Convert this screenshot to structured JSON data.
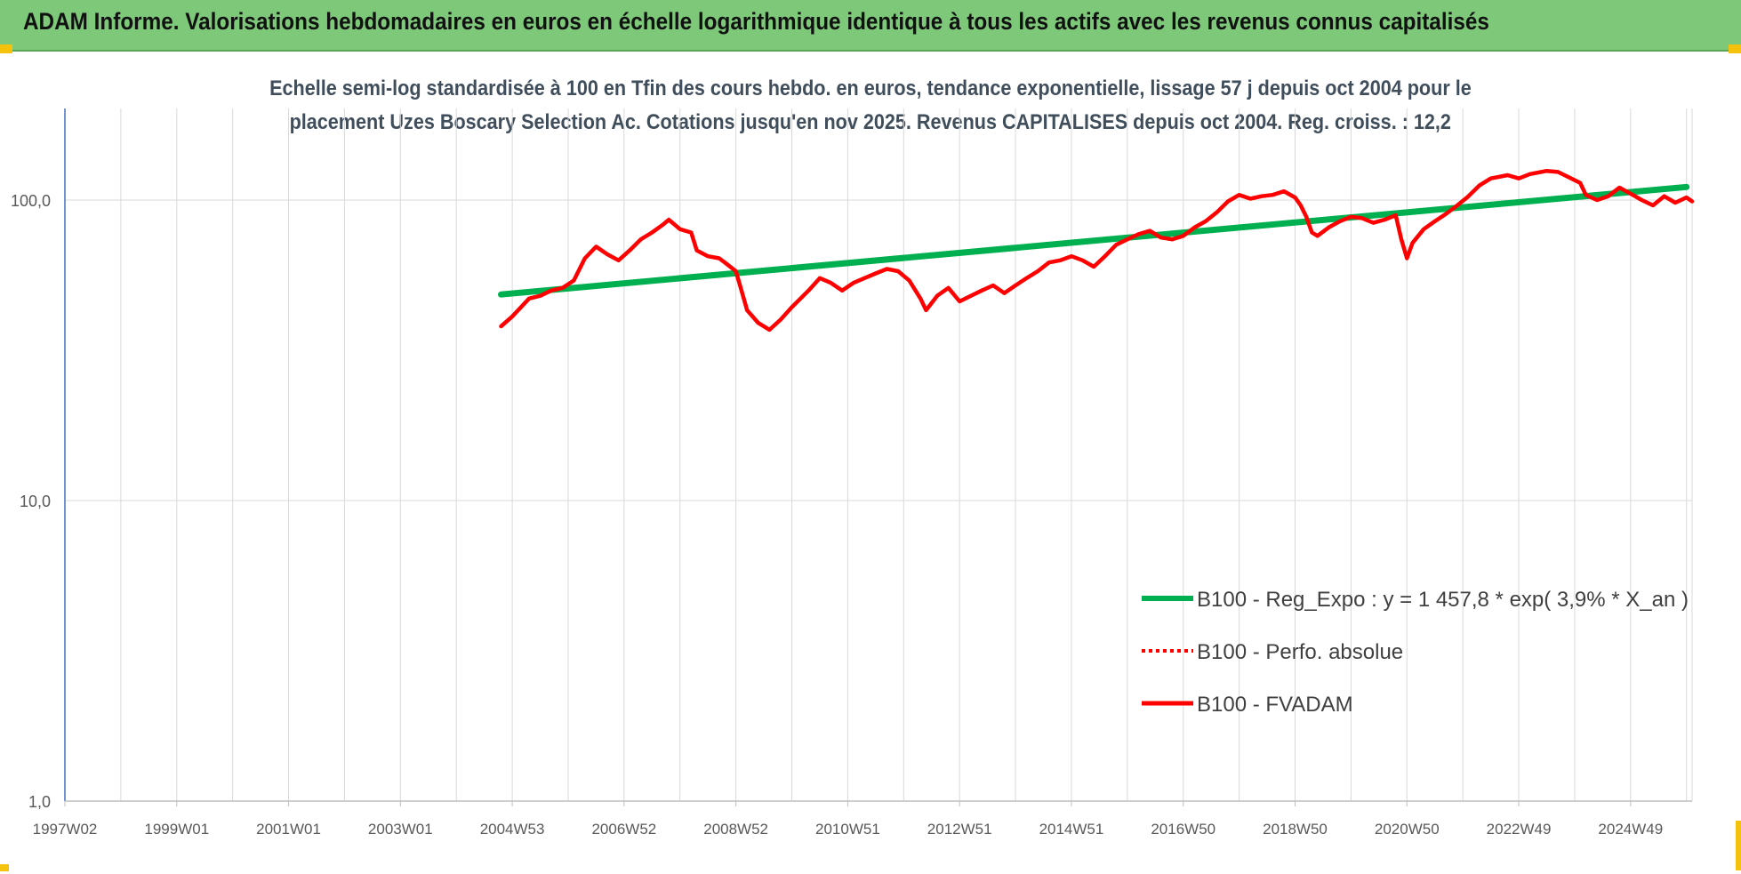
{
  "header": {
    "title": "ADAM Informe. Valorisations hebdomadaires en euros en échelle logarithmique identique à tous les actifs avec les revenus connus capitalisés"
  },
  "colors": {
    "banner": "#7ec87a",
    "trend": "#00b050",
    "series": "#ff0000",
    "grid": "#d9d9d9",
    "axis": "#4472c4",
    "subtitle": "#404e5c"
  },
  "chart_data": {
    "type": "line",
    "title_line1": "Echelle semi-log standardisée à 100 en Tfin des cours hebdo. en euros, tendance exponentielle, lissage 57 j depuis oct 2004 pour le",
    "title_line2": "placement Uzes Boscary Selection Ac. Cotations jusqu'en nov 2025. Revenus CAPITALISES depuis oct 2004. Reg. croiss. : 12,2",
    "y_scale": "log",
    "ylim": [
      1,
      190
    ],
    "y_ticks": [
      {
        "value": 1,
        "label": "1,0"
      },
      {
        "value": 10,
        "label": "10,0"
      },
      {
        "value": 100,
        "label": "100,0"
      }
    ],
    "xlim": [
      1997.0,
      2026.1
    ],
    "x_ticks": [
      {
        "x": 1997.0,
        "label": "1997W02"
      },
      {
        "x": 1999.0,
        "label": "1999W01"
      },
      {
        "x": 2001.0,
        "label": "2001W01"
      },
      {
        "x": 2003.0,
        "label": "2003W01"
      },
      {
        "x": 2005.0,
        "label": "2004W53"
      },
      {
        "x": 2007.0,
        "label": "2006W52"
      },
      {
        "x": 2009.0,
        "label": "2008W52"
      },
      {
        "x": 2011.0,
        "label": "2010W51"
      },
      {
        "x": 2013.0,
        "label": "2012W51"
      },
      {
        "x": 2015.0,
        "label": "2014W51"
      },
      {
        "x": 2017.0,
        "label": "2016W50"
      },
      {
        "x": 2019.0,
        "label": "2018W50"
      },
      {
        "x": 2021.0,
        "label": "2020W50"
      },
      {
        "x": 2023.0,
        "label": "2022W49"
      },
      {
        "x": 2025.0,
        "label": "2024W49"
      }
    ],
    "legend_position": "bottom-right",
    "series": [
      {
        "name": "B100 - Reg_Expo : y = 1 457,8 * exp( 3,9% *  X_an )",
        "style": "solid-thick",
        "color": "#00b050",
        "points": [
          [
            2004.8,
            48.5
          ],
          [
            2026.0,
            110.5
          ]
        ]
      },
      {
        "name": "B100 - Perfo. absolue",
        "style": "dotted",
        "color": "#ff0000",
        "points": []
      },
      {
        "name": "B100 - FVADAM",
        "style": "solid",
        "color": "#ff0000",
        "points": [
          [
            2004.8,
            38
          ],
          [
            2005.0,
            41
          ],
          [
            2005.3,
            47
          ],
          [
            2005.5,
            48
          ],
          [
            2005.7,
            50
          ],
          [
            2005.9,
            51
          ],
          [
            2006.1,
            54
          ],
          [
            2006.3,
            64
          ],
          [
            2006.5,
            70
          ],
          [
            2006.7,
            66
          ],
          [
            2006.9,
            63
          ],
          [
            2007.1,
            68
          ],
          [
            2007.3,
            74
          ],
          [
            2007.5,
            78
          ],
          [
            2007.7,
            83
          ],
          [
            2007.8,
            86
          ],
          [
            2008.0,
            80
          ],
          [
            2008.2,
            78
          ],
          [
            2008.3,
            68
          ],
          [
            2008.5,
            65
          ],
          [
            2008.7,
            64
          ],
          [
            2008.8,
            62
          ],
          [
            2009.0,
            58
          ],
          [
            2009.1,
            50
          ],
          [
            2009.2,
            43
          ],
          [
            2009.4,
            39
          ],
          [
            2009.6,
            37
          ],
          [
            2009.8,
            40
          ],
          [
            2010.0,
            44
          ],
          [
            2010.3,
            50
          ],
          [
            2010.5,
            55
          ],
          [
            2010.7,
            53
          ],
          [
            2010.9,
            50
          ],
          [
            2011.1,
            53
          ],
          [
            2011.3,
            55
          ],
          [
            2011.5,
            57
          ],
          [
            2011.7,
            59
          ],
          [
            2011.9,
            58
          ],
          [
            2012.1,
            54
          ],
          [
            2012.3,
            47
          ],
          [
            2012.4,
            43
          ],
          [
            2012.6,
            48
          ],
          [
            2012.8,
            51
          ],
          [
            2013.0,
            46
          ],
          [
            2013.2,
            48
          ],
          [
            2013.4,
            50
          ],
          [
            2013.6,
            52
          ],
          [
            2013.8,
            49
          ],
          [
            2014.0,
            52
          ],
          [
            2014.2,
            55
          ],
          [
            2014.4,
            58
          ],
          [
            2014.6,
            62
          ],
          [
            2014.8,
            63
          ],
          [
            2015.0,
            65
          ],
          [
            2015.2,
            63
          ],
          [
            2015.4,
            60
          ],
          [
            2015.6,
            65
          ],
          [
            2015.8,
            71
          ],
          [
            2016.0,
            74
          ],
          [
            2016.2,
            77
          ],
          [
            2016.4,
            79
          ],
          [
            2016.6,
            75
          ],
          [
            2016.8,
            74
          ],
          [
            2017.0,
            76
          ],
          [
            2017.2,
            81
          ],
          [
            2017.4,
            85
          ],
          [
            2017.6,
            91
          ],
          [
            2017.8,
            99
          ],
          [
            2018.0,
            104
          ],
          [
            2018.2,
            101
          ],
          [
            2018.4,
            103
          ],
          [
            2018.6,
            104
          ],
          [
            2018.8,
            107
          ],
          [
            2019.0,
            102
          ],
          [
            2019.1,
            96
          ],
          [
            2019.2,
            88
          ],
          [
            2019.3,
            78
          ],
          [
            2019.4,
            76
          ],
          [
            2019.6,
            81
          ],
          [
            2019.8,
            85
          ],
          [
            2020.0,
            88
          ],
          [
            2020.2,
            87
          ],
          [
            2020.4,
            84
          ],
          [
            2020.6,
            86
          ],
          [
            2020.8,
            89
          ],
          [
            2020.9,
            74
          ],
          [
            2021.0,
            64
          ],
          [
            2021.1,
            72
          ],
          [
            2021.3,
            80
          ],
          [
            2021.5,
            85
          ],
          [
            2021.7,
            90
          ],
          [
            2021.9,
            96
          ],
          [
            2022.1,
            103
          ],
          [
            2022.3,
            112
          ],
          [
            2022.5,
            118
          ],
          [
            2022.8,
            121
          ],
          [
            2023.0,
            118
          ],
          [
            2023.2,
            122
          ],
          [
            2023.5,
            125
          ],
          [
            2023.7,
            124
          ],
          [
            2023.9,
            119
          ],
          [
            2024.1,
            114
          ],
          [
            2024.2,
            104
          ],
          [
            2024.4,
            100
          ],
          [
            2024.6,
            103
          ],
          [
            2024.8,
            110
          ],
          [
            2025.0,
            105
          ],
          [
            2025.2,
            100
          ],
          [
            2025.4,
            96
          ],
          [
            2025.6,
            103
          ],
          [
            2025.8,
            98
          ],
          [
            2026.0,
            102
          ],
          [
            2026.1,
            99
          ]
        ]
      }
    ]
  }
}
